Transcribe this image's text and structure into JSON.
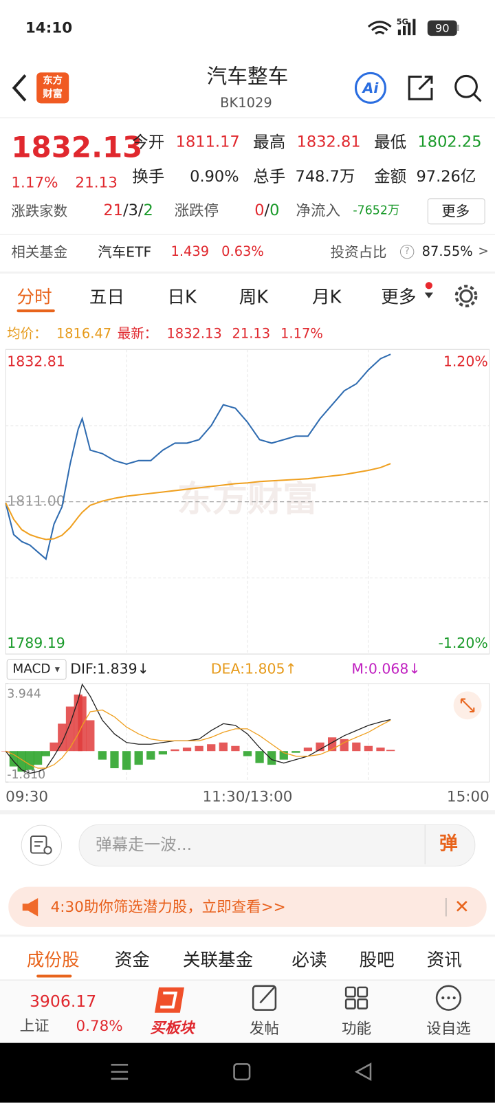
{
  "status": {
    "time": "14:10",
    "network": "5G",
    "battery": "90"
  },
  "header": {
    "logo_top": "东方",
    "logo_bottom": "财富",
    "title": "汽车整车",
    "code": "BK1029",
    "ai": "Ai"
  },
  "quote": {
    "price": "1832.13",
    "change_pct": "1.17%",
    "change": "21.13",
    "fields": [
      {
        "label": "今开",
        "value": "1811.17"
      },
      {
        "label": "最高",
        "value": "1832.81"
      },
      {
        "label": "最低",
        "value": "1802.25"
      },
      {
        "label": "换手",
        "value": "0.90%"
      },
      {
        "label": "总手",
        "value": "748.7万"
      },
      {
        "label": "金额",
        "value": "97.26亿"
      }
    ],
    "breadth": {
      "label": "涨跌家数",
      "up": "21",
      "flat": "3",
      "down": "2",
      "sep": "/"
    },
    "limit": {
      "label": "涨跌停",
      "up": "0",
      "down": "0"
    },
    "inflow": {
      "label": "净流入",
      "value": "-7652万"
    },
    "more": "更多"
  },
  "fund": {
    "label": "相关基金",
    "name": "汽车ETF",
    "price": "1.439",
    "pct": "0.63%",
    "ratio_label": "投资占比",
    "help": "?",
    "ratio": "87.55%",
    "arrow": ">"
  },
  "tabs": [
    "分时",
    "五日",
    "日K",
    "周K",
    "月K",
    "更多"
  ],
  "info": {
    "avg_label": "均价：",
    "avg": "1816.47",
    "last_label": "最新：",
    "last": "1832.13",
    "change": "21.13",
    "pct": "1.17%"
  },
  "watermark": "东方财富",
  "chart_data": [
    {
      "type": "line",
      "x": [
        0,
        4,
        8,
        12,
        16,
        20,
        24,
        28,
        32,
        36,
        38,
        42,
        48,
        54,
        60,
        66,
        72,
        78,
        84,
        90,
        96,
        102,
        108,
        114,
        120,
        126,
        132,
        138,
        144,
        150,
        156,
        162,
        168,
        174,
        180,
        186,
        191
      ],
      "xlim": [
        0,
        240
      ],
      "xticks": [
        {
          "value": 0,
          "label": "09:30"
        },
        {
          "value": 120,
          "label": "11:30/13:00"
        },
        {
          "value": 240,
          "label": "15:00"
        }
      ],
      "xgrid": [
        60,
        120,
        180
      ],
      "ygrid": [
        1821.9,
        1800.1
      ],
      "ylim": [
        1789.19,
        1832.81
      ],
      "yticks": [
        1832.81,
        {
          "value": 1811,
          "label": "1811.00"
        },
        1789.19
      ],
      "y2lim": [
        -1.2,
        1.2
      ],
      "y2ticks": [
        {
          "value": 1.2,
          "label": "1.20%"
        },
        {
          "value": -1.2,
          "label": "-1.20%"
        }
      ],
      "series": [
        {
          "color": "#2e6bb0",
          "values": [
            1810.85,
            1806.3,
            1805.3,
            1804.8,
            1803.8,
            1802.8,
            1807.8,
            1810.3,
            1816.4,
            1821.4,
            1822.9,
            1818.4,
            1817.9,
            1816.9,
            1816.4,
            1816.9,
            1816.9,
            1818.4,
            1819.4,
            1819.4,
            1819.9,
            1821.9,
            1824.9,
            1824.4,
            1822.4,
            1819.9,
            1819.4,
            1819.9,
            1820.4,
            1820.4,
            1822.9,
            1824.9,
            1826.9,
            1827.9,
            1829.9,
            1831.5,
            1832.13
          ]
        },
        {
          "color": "#efa020",
          "values": [
            1810.85,
            1808.5,
            1807.0,
            1806.3,
            1805.9,
            1805.6,
            1805.7,
            1806.2,
            1807.3,
            1808.8,
            1809.5,
            1810.5,
            1811.1,
            1811.5,
            1811.8,
            1812.0,
            1812.2,
            1812.4,
            1812.6,
            1812.8,
            1813.0,
            1813.2,
            1813.4,
            1813.6,
            1813.7,
            1813.9,
            1814.0,
            1814.1,
            1814.2,
            1814.3,
            1814.5,
            1814.7,
            1814.9,
            1815.2,
            1815.5,
            1815.9,
            1816.47
          ]
        }
      ]
    },
    {
      "type": "macd",
      "indicator": "MACD",
      "dropdown": "▾",
      "x": [
        0,
        4,
        8,
        12,
        16,
        20,
        24,
        28,
        32,
        36,
        38,
        42,
        48,
        54,
        60,
        66,
        72,
        78,
        84,
        90,
        96,
        102,
        108,
        114,
        120,
        126,
        132,
        138,
        144,
        150,
        156,
        162,
        168,
        174,
        180,
        186,
        191
      ],
      "xlim": [
        0,
        240
      ],
      "ylim": [
        -1.81,
        3.944
      ],
      "yticks": [
        3.944,
        {
          "value": -1.81,
          "label": "-1.810"
        }
      ],
      "xgrid": [
        60,
        120,
        180
      ],
      "series": [
        {
          "name": "DIF:1.839↓",
          "color": "#222222",
          "values": [
            0,
            -0.6,
            -1.1,
            -1.3,
            -1.2,
            -1.0,
            -0.3,
            0.5,
            1.6,
            3.0,
            3.9,
            3.2,
            1.8,
            1.0,
            0.5,
            0.4,
            0.4,
            0.5,
            0.6,
            0.6,
            0.7,
            1.2,
            1.6,
            1.5,
            1.0,
            0.2,
            -0.5,
            -0.7,
            -0.5,
            -0.3,
            0.1,
            0.5,
            0.9,
            1.2,
            1.5,
            1.7,
            1.839
          ]
        },
        {
          "name": "DEA:1.805↑",
          "color": "#efa020",
          "values": [
            0,
            -0.2,
            -0.5,
            -0.8,
            -1.0,
            -1.0,
            -0.8,
            -0.4,
            0.2,
            1.0,
            1.5,
            2.3,
            2.4,
            2.0,
            1.4,
            1.0,
            0.7,
            0.6,
            0.6,
            0.6,
            0.6,
            0.8,
            1.1,
            1.3,
            1.3,
            0.9,
            0.4,
            -0.1,
            -0.3,
            -0.3,
            -0.2,
            0.1,
            0.5,
            0.8,
            1.1,
            1.5,
            1.805
          ]
        },
        {
          "name": "M:0.068↓",
          "color": "#c020c0",
          "up_color": "#e03c3c",
          "down_color": "#22a020",
          "values": [
            0,
            -0.9,
            -1.2,
            -1.1,
            -0.8,
            -0.3,
            0.5,
            1.6,
            2.6,
            3.3,
            3.2,
            1.8,
            -0.5,
            -1.0,
            -1.1,
            -0.8,
            -0.5,
            -0.2,
            0.1,
            0.2,
            0.3,
            0.4,
            0.5,
            0.3,
            -0.3,
            -0.7,
            -0.8,
            -0.5,
            -0.1,
            0.2,
            0.5,
            0.8,
            0.7,
            0.5,
            0.3,
            0.2,
            0.068
          ]
        }
      ]
    }
  ],
  "comment": {
    "placeholder": "弹幕走一波...",
    "danmaku": "弹"
  },
  "banner": {
    "text": "4:30助你筛选潜力股，立即查看>>",
    "close": "✕"
  },
  "bottom_tabs": [
    "成份股",
    "资金",
    "关联基金",
    "必读",
    "股吧",
    "资讯"
  ],
  "nav": {
    "index_value": "3906.17",
    "index_name": "上证",
    "index_pct": "0.78%",
    "items": [
      "买板块",
      "发帖",
      "功能",
      "设自选"
    ]
  }
}
